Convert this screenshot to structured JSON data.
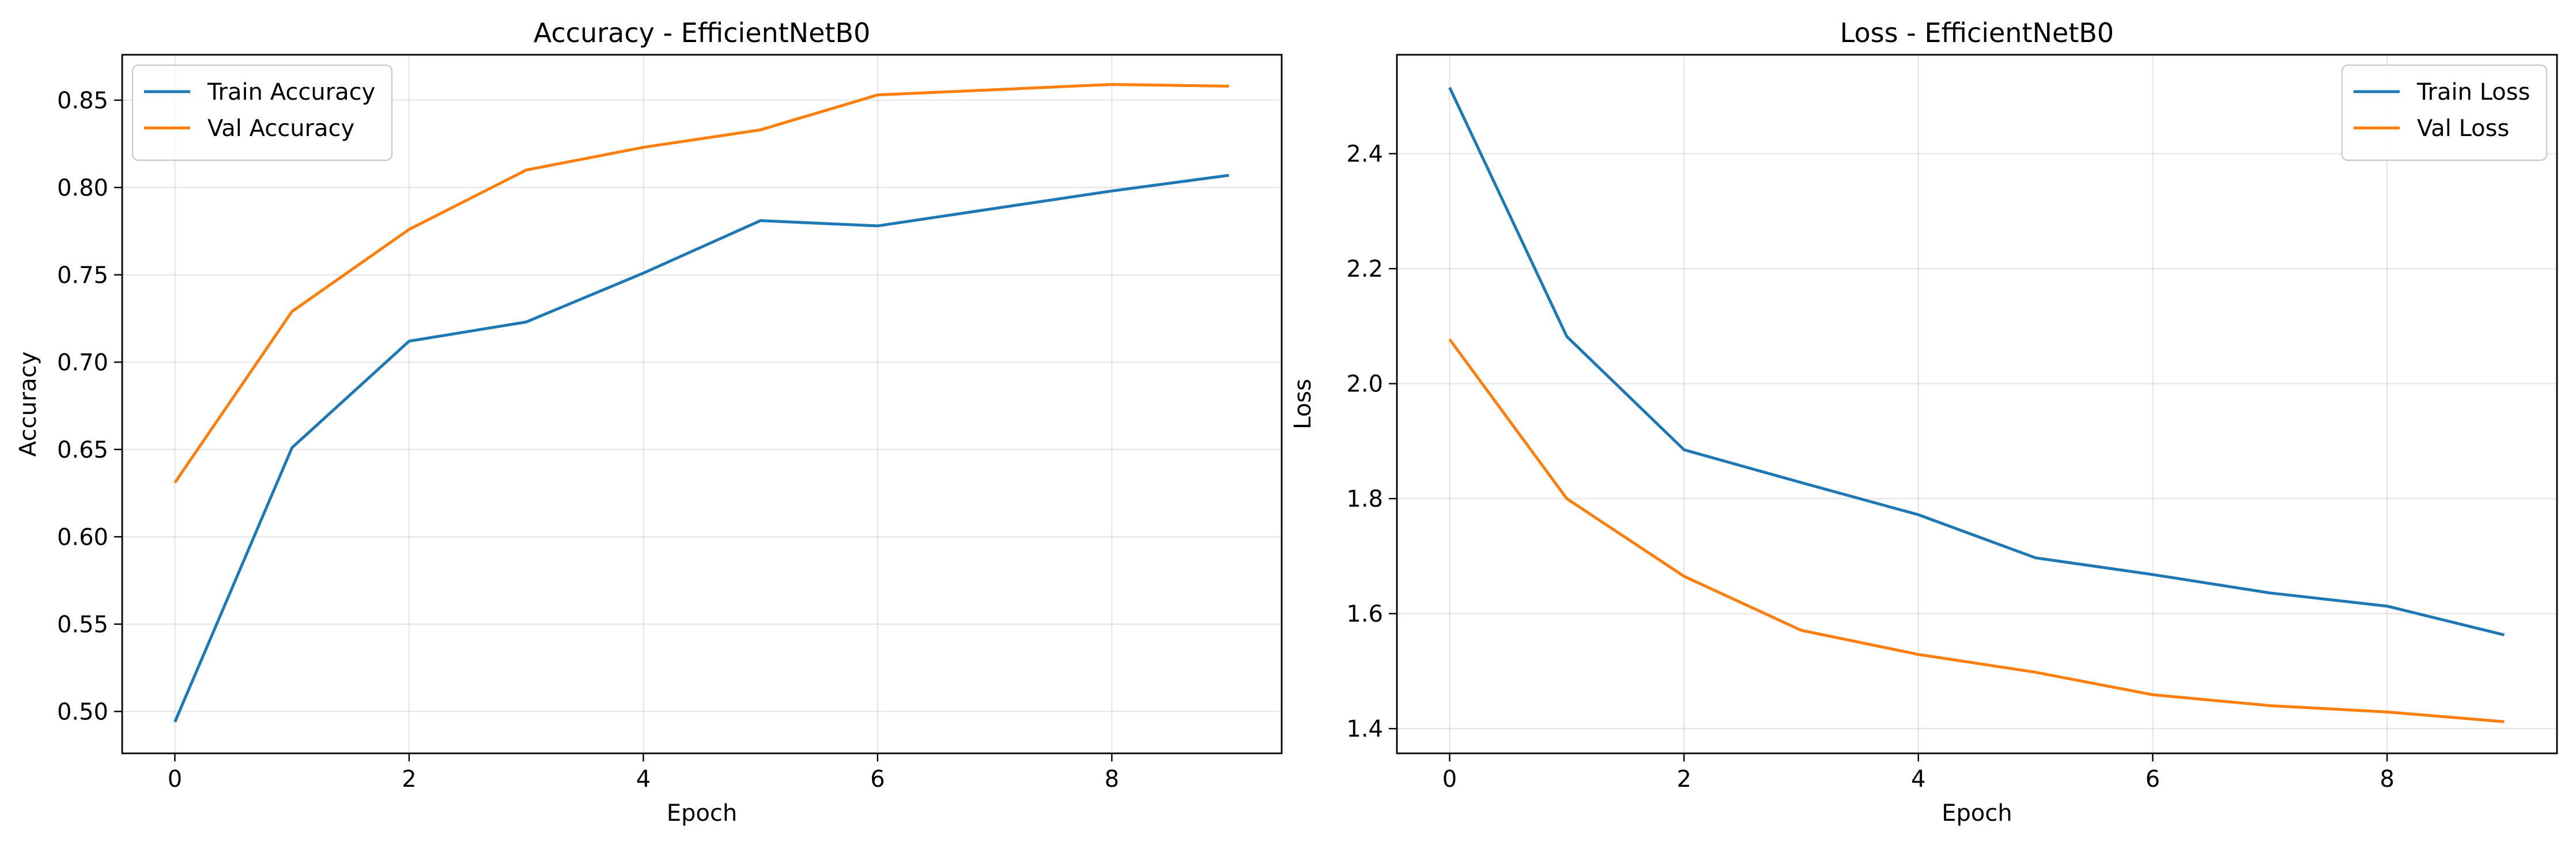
{
  "chart_data": [
    {
      "type": "line",
      "title": "Accuracy - EfficientNetB0",
      "xlabel": "Epoch",
      "ylabel": "Accuracy",
      "x": [
        0,
        1,
        2,
        3,
        4,
        5,
        6,
        7,
        8,
        9
      ],
      "xlim": [
        -0.45,
        9.45
      ],
      "ylim": [
        0.476,
        0.876
      ],
      "xticks": [
        0,
        2,
        4,
        6,
        8
      ],
      "xtick_labels": [
        "0",
        "2",
        "4",
        "6",
        "8"
      ],
      "yticks": [
        0.5,
        0.55,
        0.6,
        0.65,
        0.7,
        0.75,
        0.8,
        0.85
      ],
      "ytick_labels": [
        "0.50",
        "0.55",
        "0.60",
        "0.65",
        "0.70",
        "0.75",
        "0.80",
        "0.85"
      ],
      "grid": true,
      "legend_position": "top-left",
      "series": [
        {
          "name": "Train Accuracy",
          "color": "#1f77b4",
          "values": [
            0.494,
            0.651,
            0.712,
            0.723,
            0.751,
            0.781,
            0.778,
            0.788,
            0.798,
            0.807
          ]
        },
        {
          "name": "Val Accuracy",
          "color": "#ff7f0e",
          "values": [
            0.631,
            0.729,
            0.776,
            0.81,
            0.823,
            0.833,
            0.853,
            0.856,
            0.859,
            0.858
          ]
        }
      ]
    },
    {
      "type": "line",
      "title": "Loss - EfficientNetB0",
      "xlabel": "Epoch",
      "ylabel": "Loss",
      "x": [
        0,
        1,
        2,
        3,
        4,
        5,
        6,
        7,
        8,
        9
      ],
      "xlim": [
        -0.45,
        9.45
      ],
      "ylim": [
        1.357,
        2.572
      ],
      "xticks": [
        0,
        2,
        4,
        6,
        8
      ],
      "xtick_labels": [
        "0",
        "2",
        "4",
        "6",
        "8"
      ],
      "yticks": [
        1.4,
        1.6,
        1.8,
        2.0,
        2.2,
        2.4
      ],
      "ytick_labels": [
        "1.4",
        "1.6",
        "1.8",
        "2.0",
        "2.2",
        "2.4"
      ],
      "grid": true,
      "legend_position": "top-right",
      "series": [
        {
          "name": "Train Loss",
          "color": "#1f77b4",
          "values": [
            2.515,
            2.082,
            1.885,
            1.828,
            1.772,
            1.697,
            1.668,
            1.636,
            1.613,
            1.563
          ]
        },
        {
          "name": "Val Loss",
          "color": "#ff7f0e",
          "values": [
            2.077,
            1.8,
            1.665,
            1.571,
            1.529,
            1.498,
            1.459,
            1.44,
            1.429,
            1.412
          ]
        }
      ]
    }
  ]
}
